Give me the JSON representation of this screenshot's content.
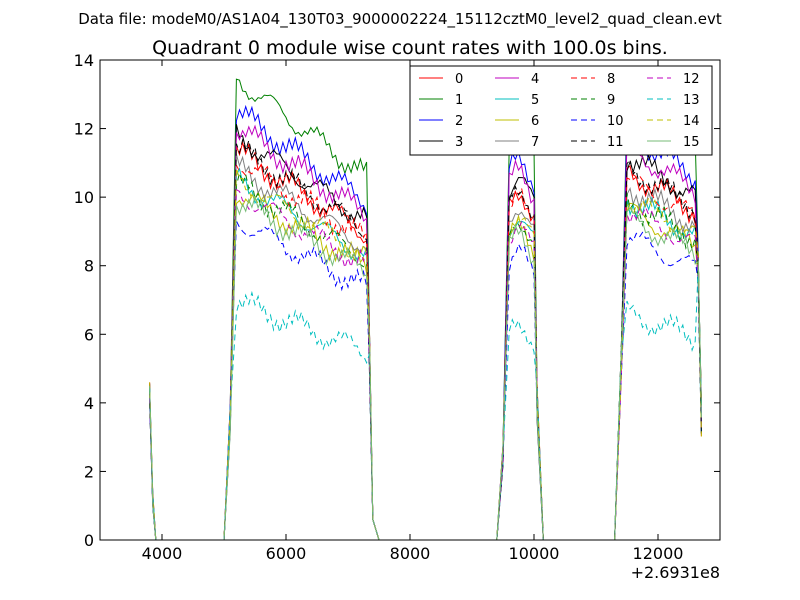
{
  "figure": {
    "suptitle": "Data file: modeM0/AS1A04_130T03_9000002224_15112cztM0_level2_quad_clean.evt",
    "x_offset_label": "+2.6931e8"
  },
  "chart_data": {
    "type": "line",
    "title": "Quadrant 0 module wise count rates with 100.0s bins.",
    "xlabel": "",
    "ylabel": "",
    "xlim": [
      3000,
      13000
    ],
    "ylim": [
      0,
      14
    ],
    "xticks": [
      {
        "value": 4000,
        "label": "4000"
      },
      {
        "value": 6000,
        "label": "6000"
      },
      {
        "value": 8000,
        "label": "8000"
      },
      {
        "value": 10000,
        "label": "10000"
      },
      {
        "value": 12000,
        "label": "12000"
      }
    ],
    "yticks": [
      {
        "value": 0,
        "label": "0"
      },
      {
        "value": 2,
        "label": "2"
      },
      {
        "value": 4,
        "label": "4"
      },
      {
        "value": 6,
        "label": "6"
      },
      {
        "value": 8,
        "label": "8"
      },
      {
        "value": 10,
        "label": "10"
      },
      {
        "value": 12,
        "label": "12"
      },
      {
        "value": 14,
        "label": "14"
      }
    ],
    "grid": false,
    "legend_position": "top-right",
    "legend_columns": 4,
    "series_levels": {
      "0": 9.6,
      "1": 11.4,
      "2": 10.6,
      "3": 10.0,
      "4": 10.2,
      "5": 8.9,
      "6": 8.6,
      "7": 9.2,
      "8": 9.4,
      "9": 8.8,
      "10": 7.9,
      "11": 9.7,
      "12": 8.6,
      "13": 5.9,
      "14": 8.9,
      "15": 8.4
    },
    "series": [
      {
        "name": "0",
        "color": "#ff0000",
        "dash": "solid"
      },
      {
        "name": "1",
        "color": "#008000",
        "dash": "solid"
      },
      {
        "name": "2",
        "color": "#0000ff",
        "dash": "solid"
      },
      {
        "name": "3",
        "color": "#000000",
        "dash": "solid"
      },
      {
        "name": "4",
        "color": "#bf00bf",
        "dash": "solid"
      },
      {
        "name": "5",
        "color": "#00bfbf",
        "dash": "solid"
      },
      {
        "name": "6",
        "color": "#bfbf00",
        "dash": "solid"
      },
      {
        "name": "7",
        "color": "#808080",
        "dash": "solid"
      },
      {
        "name": "8",
        "color": "#ff0000",
        "dash": "dashed"
      },
      {
        "name": "9",
        "color": "#008000",
        "dash": "dashed"
      },
      {
        "name": "10",
        "color": "#0000ff",
        "dash": "dashed"
      },
      {
        "name": "11",
        "color": "#000000",
        "dash": "dashed"
      },
      {
        "name": "12",
        "color": "#bf00bf",
        "dash": "dashed"
      },
      {
        "name": "13",
        "color": "#00bfbf",
        "dash": "dashed"
      },
      {
        "name": "14",
        "color": "#bfbf00",
        "dash": "dashed"
      },
      {
        "name": "15",
        "color": "#77bb77",
        "dash": "solid"
      }
    ]
  }
}
